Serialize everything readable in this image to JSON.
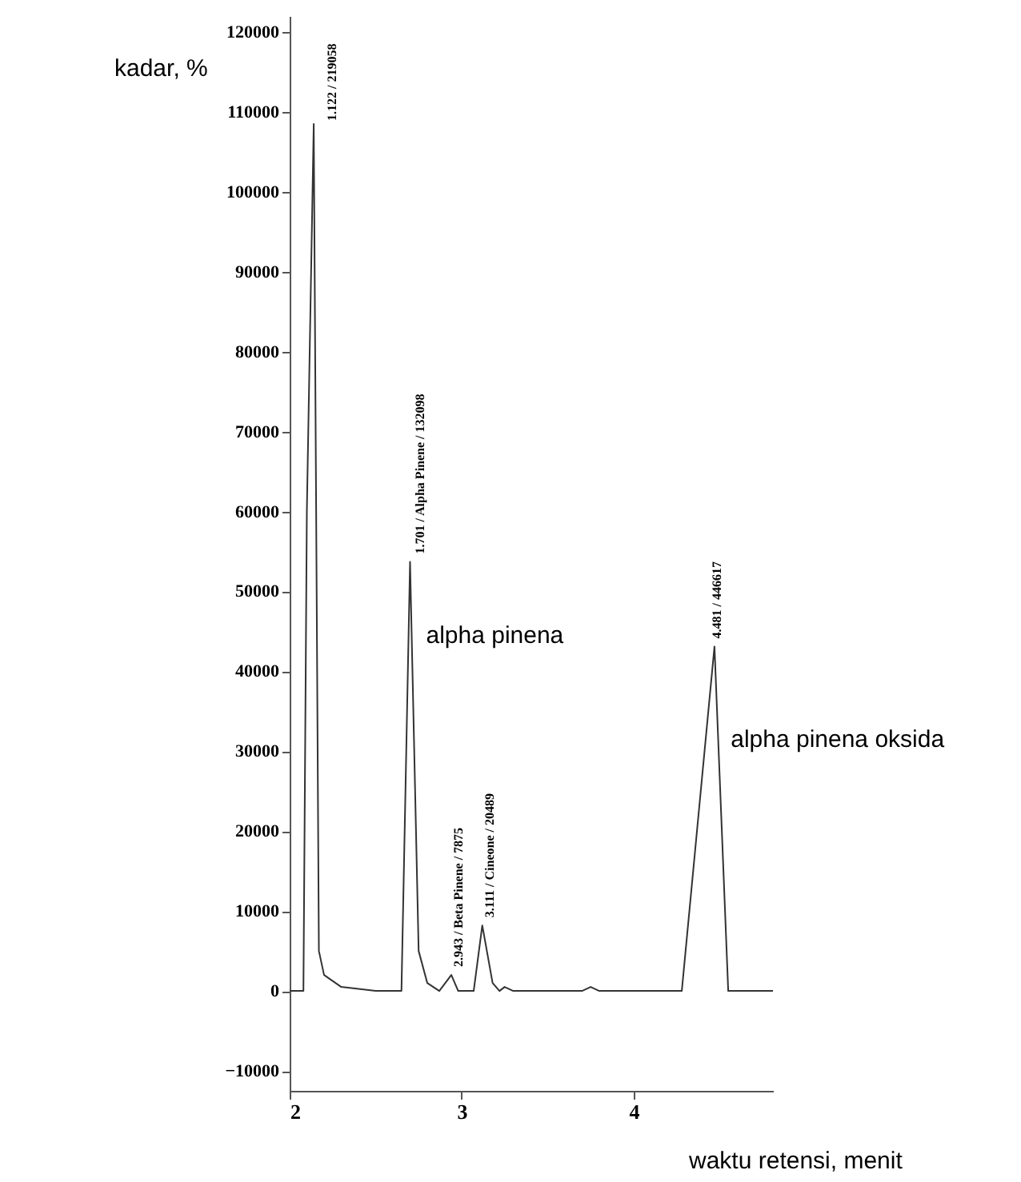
{
  "chart_data": {
    "type": "line",
    "xlabel": "waktu retensi, menit",
    "ylabel": "kadar, %",
    "x": [
      2.0,
      2.08,
      2.1,
      2.14,
      2.17,
      2.2,
      2.3,
      2.5,
      2.65,
      2.7,
      2.75,
      2.8,
      2.87,
      2.94,
      2.98,
      3.07,
      3.12,
      3.18,
      3.22,
      3.25,
      3.3,
      3.7,
      3.75,
      3.8,
      4.28,
      4.47,
      4.55,
      4.81
    ],
    "series": [
      {
        "color": "#333333",
        "values": [
          0,
          0,
          60000,
          108500,
          5000,
          2000,
          500,
          0,
          0,
          53700,
          5000,
          1000,
          0,
          2000,
          0,
          0,
          8200,
          1000,
          0,
          500,
          0,
          0,
          500,
          0,
          0,
          43100,
          0,
          0
        ]
      }
    ],
    "xlim": [
      2,
      4.81
    ],
    "ylim": [
      -12500,
      122000
    ],
    "xticks": [
      2,
      3,
      4
    ],
    "yticks": [
      -10000,
      0,
      10000,
      20000,
      30000,
      40000,
      50000,
      60000,
      70000,
      80000,
      90000,
      100000,
      110000,
      120000
    ],
    "grid": false,
    "marker": "none",
    "line_style": "solid",
    "annotations": [
      {
        "text": "1.122 / 219058",
        "x": 2.14,
        "y": 108500
      },
      {
        "text": "1.701 / Alpha Pinene / 132098",
        "x": 2.7,
        "y": 53700
      },
      {
        "text": "2.943 / Beta Pinene / 7875",
        "x": 2.94,
        "y": 2000
      },
      {
        "text": "3.111 / Cineone / 20489",
        "x": 3.12,
        "y": 8200
      },
      {
        "text": "4.481 / 446617",
        "x": 4.47,
        "y": 43100
      },
      {
        "text": "alpha pinena",
        "x": 2.7,
        "y": 53700
      },
      {
        "text": "alpha pinena oksida",
        "x": 4.49,
        "y": 31500
      }
    ]
  }
}
